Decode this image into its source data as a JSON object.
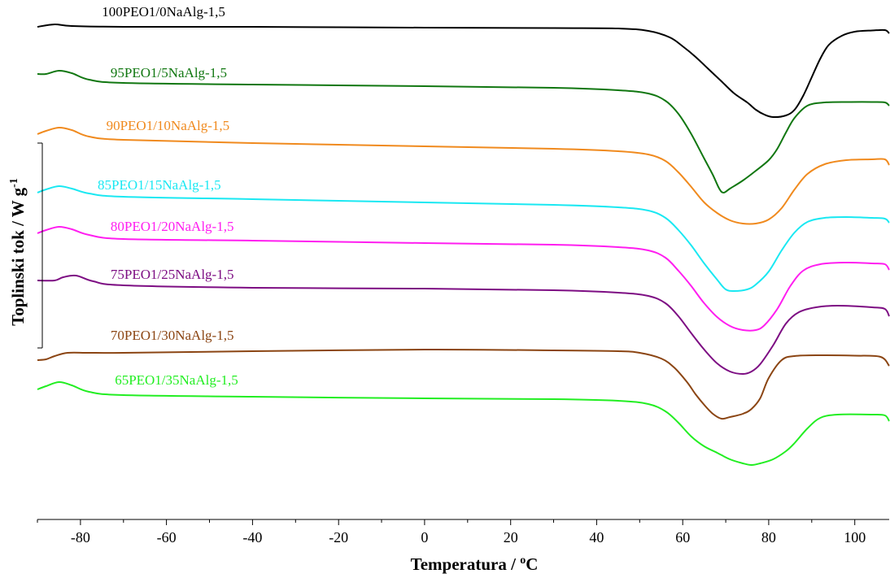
{
  "chart_data": {
    "type": "line",
    "title": "",
    "xlabel": "Temperatura / ",
    "xlabel_unit_sup": "o",
    "xlabel_unit": "C",
    "ylabel": "Toplinski tok / W g",
    "ylabel_sup": "-1",
    "xlim": [
      -90,
      108
    ],
    "x_ticks": [
      -80,
      -60,
      -40,
      -20,
      0,
      20,
      40,
      60,
      80,
      100
    ],
    "y_ticks": [],
    "grid": false,
    "legend": "none",
    "series": [
      {
        "name": "100PEO1/0NaAlg-1,5",
        "color": "#000000",
        "points": [
          [
            -90,
            33
          ],
          [
            -86,
            30
          ],
          [
            -82,
            32
          ],
          [
            -70,
            33
          ],
          [
            -40,
            33
          ],
          [
            0,
            34
          ],
          [
            30,
            34.5
          ],
          [
            45,
            35
          ],
          [
            52,
            38
          ],
          [
            57,
            46
          ],
          [
            60,
            57
          ],
          [
            63,
            70
          ],
          [
            66,
            85
          ],
          [
            69,
            100
          ],
          [
            72,
            115
          ],
          [
            75,
            126
          ],
          [
            77,
            135
          ],
          [
            79,
            141
          ],
          [
            81,
            144
          ],
          [
            84,
            142
          ],
          [
            86,
            135
          ],
          [
            88,
            118
          ],
          [
            90,
            95
          ],
          [
            92,
            72
          ],
          [
            94,
            55
          ],
          [
            97,
            44
          ],
          [
            100,
            39
          ],
          [
            104,
            37.5
          ],
          [
            107,
            37
          ],
          [
            108,
            41
          ]
        ]
      },
      {
        "name": "95PEO1/5NaAlg-1,5",
        "color": "#117711",
        "points": [
          [
            -90,
            91
          ],
          [
            -88,
            91
          ],
          [
            -85,
            87
          ],
          [
            -82,
            90
          ],
          [
            -78,
            98
          ],
          [
            -70,
            102
          ],
          [
            -40,
            104
          ],
          [
            0,
            106
          ],
          [
            30,
            108
          ],
          [
            45,
            111
          ],
          [
            52,
            115
          ],
          [
            56,
            124
          ],
          [
            59,
            140
          ],
          [
            62,
            165
          ],
          [
            65,
            195
          ],
          [
            67,
            215
          ],
          [
            68.5,
            232
          ],
          [
            69.5,
            237
          ],
          [
            71,
            232
          ],
          [
            74,
            222
          ],
          [
            77,
            210
          ],
          [
            80,
            197
          ],
          [
            82,
            183
          ],
          [
            84,
            163
          ],
          [
            86,
            145
          ],
          [
            89,
            130
          ],
          [
            93,
            126
          ],
          [
            99,
            125.5
          ],
          [
            104,
            125.5
          ],
          [
            107,
            126
          ],
          [
            108,
            130
          ]
        ]
      },
      {
        "name": "90PEO1/10NaAlg-1,5",
        "color": "#f08a1e",
        "points": [
          [
            -90,
            165
          ],
          [
            -88,
            161
          ],
          [
            -85,
            157
          ],
          [
            -82,
            160
          ],
          [
            -78,
            168
          ],
          [
            -70,
            172
          ],
          [
            -40,
            176
          ],
          [
            0,
            180
          ],
          [
            30,
            183
          ],
          [
            45,
            186
          ],
          [
            52,
            190
          ],
          [
            56,
            198
          ],
          [
            59,
            212
          ],
          [
            62,
            230
          ],
          [
            65,
            249
          ],
          [
            68,
            262
          ],
          [
            71,
            271
          ],
          [
            74,
            275
          ],
          [
            77,
            275
          ],
          [
            80,
            270
          ],
          [
            83,
            256
          ],
          [
            86,
            233
          ],
          [
            89,
            214
          ],
          [
            93,
            202
          ],
          [
            98,
            197
          ],
          [
            104,
            196
          ],
          [
            107,
            196
          ],
          [
            108,
            203
          ]
        ]
      },
      {
        "name": "85PEO1/15NaAlg-1,5",
        "color": "#1ae8f2",
        "points": [
          [
            -90,
            237
          ],
          [
            -88,
            233
          ],
          [
            -85,
            229
          ],
          [
            -82,
            232
          ],
          [
            -78,
            238
          ],
          [
            -70,
            242
          ],
          [
            -40,
            245
          ],
          [
            0,
            249
          ],
          [
            30,
            252
          ],
          [
            45,
            255
          ],
          [
            52,
            259
          ],
          [
            56,
            268
          ],
          [
            59,
            283
          ],
          [
            62,
            302
          ],
          [
            65,
            324
          ],
          [
            68,
            344
          ],
          [
            70,
            356
          ],
          [
            72,
            358
          ],
          [
            75,
            356
          ],
          [
            77,
            350
          ],
          [
            80,
            334
          ],
          [
            83,
            308
          ],
          [
            86,
            286
          ],
          [
            89,
            273
          ],
          [
            93,
            268
          ],
          [
            98,
            267
          ],
          [
            104,
            268
          ],
          [
            107,
            269
          ],
          [
            108,
            274
          ]
        ]
      },
      {
        "name": "80PEO1/20NaAlg-1,5",
        "color": "#ff1ef0",
        "points": [
          [
            -90,
            287
          ],
          [
            -88,
            283
          ],
          [
            -85,
            279
          ],
          [
            -82,
            282
          ],
          [
            -78,
            289
          ],
          [
            -70,
            294
          ],
          [
            -40,
            296
          ],
          [
            0,
            299
          ],
          [
            30,
            301
          ],
          [
            45,
            304
          ],
          [
            52,
            308
          ],
          [
            56,
            317
          ],
          [
            59,
            333
          ],
          [
            62,
            352
          ],
          [
            65,
            373
          ],
          [
            68,
            390
          ],
          [
            71,
            401
          ],
          [
            74,
            406
          ],
          [
            77,
            406
          ],
          [
            79,
            400
          ],
          [
            82,
            380
          ],
          [
            85,
            352
          ],
          [
            88,
            333
          ],
          [
            92,
            325
          ],
          [
            98,
            323
          ],
          [
            104,
            324
          ],
          [
            107,
            325
          ],
          [
            108,
            332
          ]
        ]
      },
      {
        "name": "75PEO1/25NaAlg-1,5",
        "color": "#7d0d83",
        "points": [
          [
            -90,
            345
          ],
          [
            -86,
            345
          ],
          [
            -84,
            341
          ],
          [
            -81,
            339
          ],
          [
            -77,
            346
          ],
          [
            -70,
            351
          ],
          [
            -40,
            354
          ],
          [
            0,
            355
          ],
          [
            30,
            357
          ],
          [
            45,
            360
          ],
          [
            52,
            364
          ],
          [
            56,
            373
          ],
          [
            59,
            389
          ],
          [
            62,
            410
          ],
          [
            65,
            430
          ],
          [
            68,
            447
          ],
          [
            71,
            457
          ],
          [
            74,
            460
          ],
          [
            76,
            457
          ],
          [
            78,
            448
          ],
          [
            81,
            425
          ],
          [
            84,
            398
          ],
          [
            87,
            384
          ],
          [
            91,
            378
          ],
          [
            96,
            376
          ],
          [
            104,
            378
          ],
          [
            107,
            380
          ],
          [
            108,
            389
          ]
        ]
      },
      {
        "name": "70PEO1/30NaAlg-1,5",
        "color": "#8b4513",
        "points": [
          [
            -90,
            443
          ],
          [
            -88,
            442
          ],
          [
            -86,
            438
          ],
          [
            -83,
            434
          ],
          [
            -78,
            434
          ],
          [
            -70,
            434
          ],
          [
            -40,
            432
          ],
          [
            0,
            430
          ],
          [
            30,
            431
          ],
          [
            45,
            432
          ],
          [
            50,
            434
          ],
          [
            55,
            441
          ],
          [
            58,
            452
          ],
          [
            61,
            470
          ],
          [
            63,
            485
          ],
          [
            65,
            498
          ],
          [
            67,
            509
          ],
          [
            69,
            515
          ],
          [
            71,
            513
          ],
          [
            74,
            509
          ],
          [
            76,
            503
          ],
          [
            78,
            490
          ],
          [
            80,
            465
          ],
          [
            83,
            443
          ],
          [
            86,
            438
          ],
          [
            92,
            437
          ],
          [
            100,
            437.5
          ],
          [
            106,
            439
          ],
          [
            108,
            450
          ]
        ]
      },
      {
        "name": "65PEO1/35NaAlg-1,5",
        "color": "#22ee22",
        "points": [
          [
            -90,
            479
          ],
          [
            -88,
            475
          ],
          [
            -85,
            470
          ],
          [
            -82,
            474
          ],
          [
            -78,
            482
          ],
          [
            -70,
            486
          ],
          [
            -40,
            488
          ],
          [
            0,
            490
          ],
          [
            30,
            491
          ],
          [
            45,
            493
          ],
          [
            52,
            497
          ],
          [
            56,
            506
          ],
          [
            59,
            520
          ],
          [
            62,
            537
          ],
          [
            65,
            549
          ],
          [
            68,
            557
          ],
          [
            71,
            565
          ],
          [
            74,
            570
          ],
          [
            76,
            572
          ],
          [
            78,
            570
          ],
          [
            81,
            565
          ],
          [
            84,
            555
          ],
          [
            86,
            545
          ],
          [
            89,
            527
          ],
          [
            92,
            514
          ],
          [
            96,
            510
          ],
          [
            104,
            510
          ],
          [
            107,
            511
          ],
          [
            108,
            518
          ]
        ]
      }
    ],
    "label_positions_note": ""
  }
}
